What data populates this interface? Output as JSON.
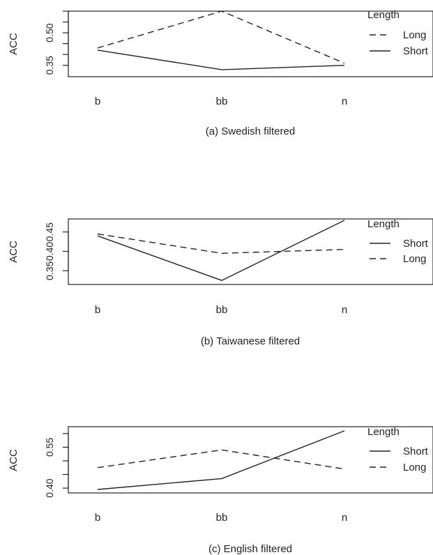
{
  "chart_data": [
    {
      "type": "line",
      "caption": "(a) Swedish filtered",
      "ylabel": "ACC",
      "categories": [
        "b",
        "bb",
        "n"
      ],
      "ylim": [
        0.32,
        0.6
      ],
      "yticks": [
        0.35,
        0.4,
        0.45,
        0.5,
        0.55,
        0.6
      ],
      "yticklabels": [
        "0.35",
        "",
        "",
        "0.50",
        "",
        ""
      ],
      "legend_title": "Length",
      "legend_position": "right",
      "series": [
        {
          "name": "Long",
          "dash": "dashed",
          "values": [
            0.43,
            0.6,
            0.36
          ]
        },
        {
          "name": "Short",
          "dash": "solid",
          "values": [
            0.42,
            0.33,
            0.35
          ]
        }
      ]
    },
    {
      "type": "line",
      "caption": "(b) Taiwanese filtered",
      "ylabel": "ACC",
      "categories": [
        "b",
        "bb",
        "n"
      ],
      "ylim": [
        0.32,
        0.48
      ],
      "yticks": [
        0.35,
        0.4,
        0.45
      ],
      "yticklabels": [
        "0.35",
        "0.40",
        "0.45"
      ],
      "legend_title": "Length",
      "legend_position": "right",
      "series": [
        {
          "name": "Short",
          "dash": "solid",
          "values": [
            0.44,
            0.325,
            0.48
          ]
        },
        {
          "name": "Long",
          "dash": "dashed",
          "values": [
            0.445,
            0.395,
            0.405
          ]
        }
      ]
    },
    {
      "type": "line",
      "caption": "(c) English filtered",
      "ylabel": "ACC",
      "categories": [
        "b",
        "bb",
        "n"
      ],
      "ylim": [
        0.39,
        0.62
      ],
      "yticks": [
        0.4,
        0.45,
        0.5,
        0.55,
        0.6
      ],
      "yticklabels": [
        "0.40",
        "",
        "",
        "0.55",
        ""
      ],
      "legend_title": "Length",
      "legend_position": "right",
      "series": [
        {
          "name": "Short",
          "dash": "solid",
          "values": [
            0.395,
            0.435,
            0.61
          ]
        },
        {
          "name": "Long",
          "dash": "dashed",
          "values": [
            0.475,
            0.54,
            0.47
          ]
        }
      ]
    }
  ]
}
